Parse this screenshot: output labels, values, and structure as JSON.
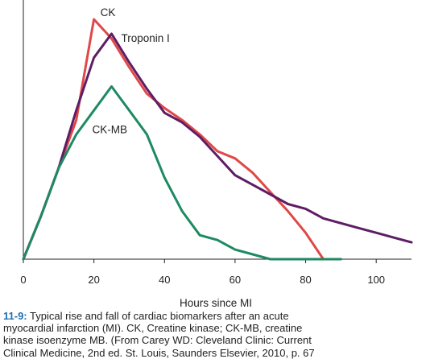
{
  "chart_data": {
    "type": "line",
    "xlabel": "Hours since MI",
    "ylabel": "",
    "xlim": [
      0,
      110
    ],
    "ylim": [
      0,
      100
    ],
    "x_ticks": [
      0,
      20,
      40,
      60,
      80,
      100
    ],
    "grid": false,
    "series": [
      {
        "name": "CK",
        "color": "#e04848",
        "points": [
          [
            0,
            0
          ],
          [
            5,
            18
          ],
          [
            10,
            38
          ],
          [
            15,
            58
          ],
          [
            20,
            100
          ],
          [
            25,
            92
          ],
          [
            30,
            80
          ],
          [
            35,
            69
          ],
          [
            40,
            63
          ],
          [
            45,
            58
          ],
          [
            50,
            52
          ],
          [
            55,
            45
          ],
          [
            60,
            42
          ],
          [
            65,
            36
          ],
          [
            70,
            28
          ],
          [
            75,
            20
          ],
          [
            80,
            11
          ],
          [
            85,
            0
          ]
        ]
      },
      {
        "name": "Troponin I",
        "color": "#5e1d64",
        "points": [
          [
            0,
            0
          ],
          [
            5,
            18
          ],
          [
            10,
            38
          ],
          [
            15,
            62
          ],
          [
            20,
            84
          ],
          [
            25,
            94
          ],
          [
            30,
            82
          ],
          [
            35,
            71
          ],
          [
            40,
            61
          ],
          [
            45,
            57
          ],
          [
            50,
            51
          ],
          [
            55,
            43
          ],
          [
            60,
            35
          ],
          [
            65,
            31
          ],
          [
            70,
            27
          ],
          [
            75,
            23
          ],
          [
            80,
            21
          ],
          [
            85,
            17
          ],
          [
            90,
            15
          ],
          [
            95,
            13
          ],
          [
            100,
            11
          ],
          [
            105,
            9
          ],
          [
            110,
            7
          ]
        ]
      },
      {
        "name": "CK-MB",
        "color": "#1e8a62",
        "points": [
          [
            0,
            0
          ],
          [
            5,
            18
          ],
          [
            10,
            38
          ],
          [
            15,
            52
          ],
          [
            20,
            62
          ],
          [
            25,
            72
          ],
          [
            30,
            62
          ],
          [
            35,
            52
          ],
          [
            40,
            34
          ],
          [
            45,
            20
          ],
          [
            50,
            10
          ],
          [
            55,
            8
          ],
          [
            60,
            4
          ],
          [
            65,
            2
          ],
          [
            70,
            0
          ],
          [
            90,
            0
          ]
        ]
      }
    ]
  },
  "caption": {
    "fig_number": "11-9:",
    "line1": "Typical rise and fall of cardiac biomarkers after an acute",
    "line2": "myocardial infarction (MI). CK, Creatine kinase; CK-MB, creatine",
    "line3": "kinase isoenzyme MB. (From Carey WD: Cleveland Clinic: Current",
    "line4": "Clinical Medicine, 2nd ed. St. Louis, Saunders Elsevier, 2010, p. 67"
  }
}
